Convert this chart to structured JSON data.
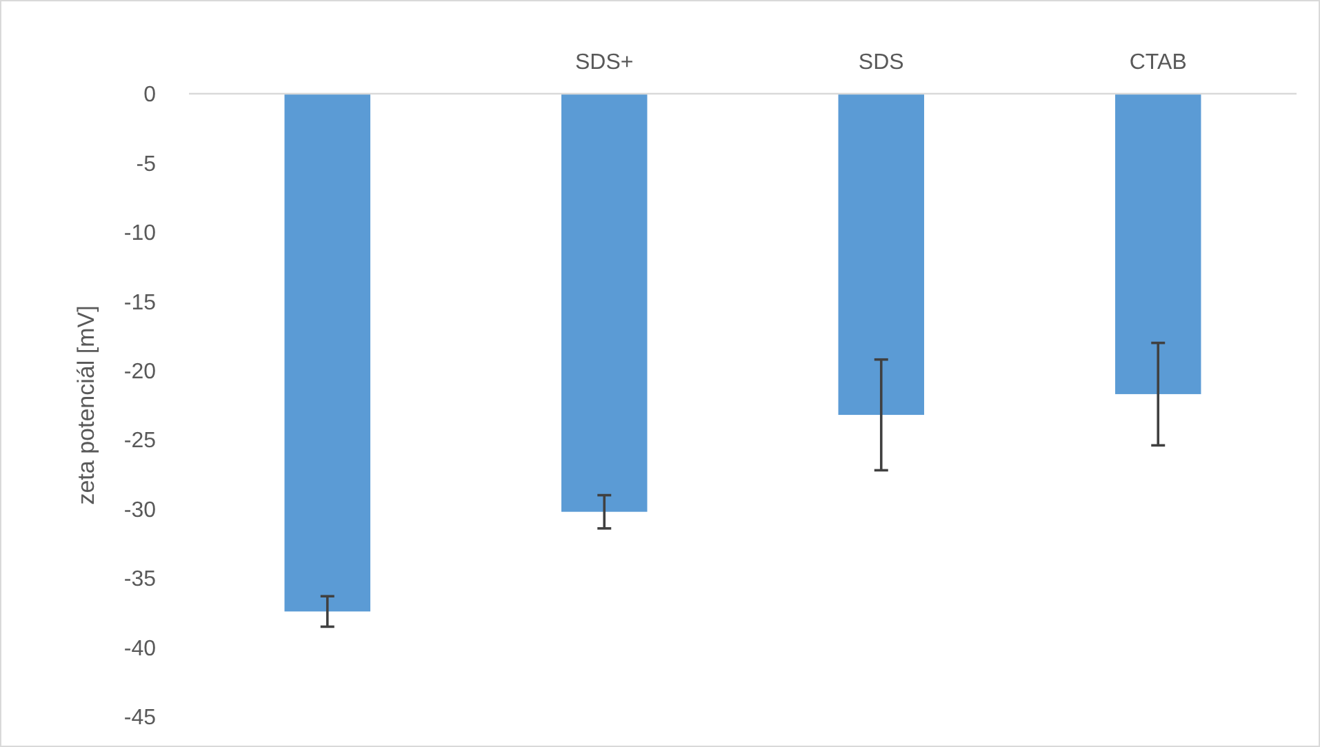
{
  "chart_data": {
    "type": "bar",
    "ylabel": "zeta potenciál [mV]",
    "categories": [
      null,
      "SDS+",
      "SDS",
      "CTAB"
    ],
    "values": [
      -37.4,
      -30.2,
      -23.2,
      -21.7
    ],
    "errors": [
      1.1,
      1.2,
      4,
      3.7
    ],
    "color": "#5b9bd5",
    "ylim": [
      -45,
      0
    ],
    "yticks": [
      -45,
      -40,
      -35,
      -30,
      -25,
      -20,
      -15,
      -10,
      -5,
      0
    ],
    "grid": false
  }
}
